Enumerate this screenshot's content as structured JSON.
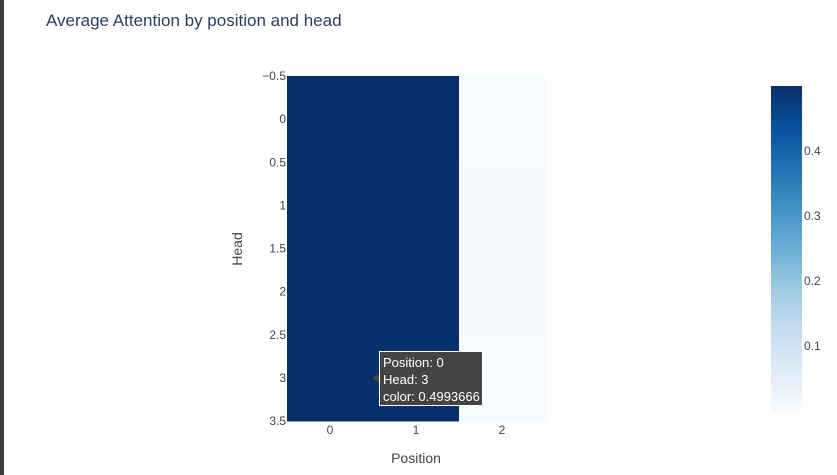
{
  "title": "Average Attention by position and head",
  "chart_data": {
    "type": "heatmap",
    "title": "Average Attention by position and head",
    "xlabel": "Position",
    "ylabel": "Head",
    "x_categories": [
      0,
      1,
      2
    ],
    "y_categories": [
      0,
      1,
      2,
      3
    ],
    "x_tick_labels": [
      "0",
      "1",
      "2"
    ],
    "y_tick_labels": [
      "−0.5",
      "0",
      "0.5",
      "1",
      "1.5",
      "2",
      "2.5",
      "3",
      "3.5"
    ],
    "y_range": [
      -0.5,
      3.5
    ],
    "y_reversed": true,
    "z": [
      [
        0.4993,
        0.4993,
        0.0014
      ],
      [
        0.4987,
        0.4962,
        0.0051
      ],
      [
        0.4991,
        0.4978,
        0.0031
      ],
      [
        0.4993666,
        0.499,
        0.0017
      ]
    ],
    "colorscale": [
      "#f7fbff",
      "#deebf7",
      "#c6dbef",
      "#9ecae1",
      "#6baed6",
      "#4292c6",
      "#2171b5",
      "#08519c",
      "#08306b"
    ],
    "colorbar": {
      "min": 0.0,
      "max": 0.5,
      "tick_values": [
        0.1,
        0.2,
        0.3,
        0.4
      ],
      "tick_labels": [
        "0.1",
        "0.2",
        "0.3",
        "0.4"
      ]
    }
  },
  "tooltip": {
    "line1": "Position: 0",
    "line2": "Head: 3",
    "line3": "color: 0.4993666"
  }
}
